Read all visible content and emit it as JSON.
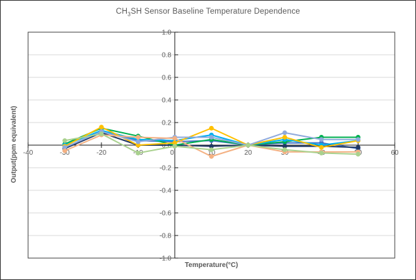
{
  "chart": {
    "title_prefix": "CH",
    "title_subscript": "3",
    "title_suffix": "SH Sensor Baseline Temperature Dependence",
    "xlabel": "Temperature(°C)",
    "ylabel": "Output(ppm equivalent)"
  },
  "chart_data": {
    "type": "line",
    "title": "CH3SH Sensor Baseline Temperature Dependence",
    "xlabel": "Temperature(°C)",
    "ylabel": "Output(ppm equivalent)",
    "xlim": [
      -40,
      60
    ],
    "ylim": [
      -1.0,
      1.0
    ],
    "x_ticks": [
      -40,
      -30,
      -20,
      -10,
      0,
      10,
      20,
      30,
      40,
      50,
      60
    ],
    "y_ticks": [
      "1.0",
      "0.8",
      "0.6",
      "0.4",
      "0.2",
      "0.0",
      "-0.2",
      "-0.4",
      "-0.6",
      "-0.8",
      "-1.0"
    ],
    "grid": "horizontal",
    "legend": "none",
    "marker": "circle",
    "x": [
      -30,
      -20,
      -10,
      0,
      10,
      20,
      30,
      40,
      50
    ],
    "series": [
      {
        "name": "series-1",
        "color": "#4472C4",
        "values": [
          -0.02,
          0.12,
          0.04,
          0.03,
          0.04,
          0.0,
          0.02,
          0.02,
          -0.03
        ]
      },
      {
        "name": "series-2",
        "color": "#203864",
        "values": [
          -0.03,
          0.11,
          0.0,
          0.0,
          -0.01,
          0.0,
          -0.01,
          -0.01,
          -0.02
        ]
      },
      {
        "name": "series-3",
        "color": "#00B050",
        "values": [
          0.01,
          0.15,
          0.08,
          0.0,
          0.05,
          0.0,
          0.03,
          0.07,
          0.07
        ]
      },
      {
        "name": "series-4",
        "color": "#00B0F0",
        "values": [
          0.0,
          0.13,
          0.05,
          0.04,
          0.09,
          0.0,
          0.05,
          0.0,
          0.04
        ]
      },
      {
        "name": "series-5",
        "color": "#FFC000",
        "values": [
          -0.01,
          0.16,
          0.0,
          0.02,
          0.15,
          0.0,
          0.07,
          -0.02,
          0.04
        ]
      },
      {
        "name": "series-6",
        "color": "#8FAADC",
        "values": [
          -0.02,
          0.12,
          0.03,
          0.07,
          0.07,
          0.0,
          0.11,
          0.05,
          0.05
        ]
      },
      {
        "name": "series-7",
        "color": "#F4B183",
        "values": [
          -0.05,
          0.09,
          0.07,
          0.06,
          -0.1,
          0.0,
          -0.06,
          -0.06,
          -0.06
        ]
      },
      {
        "name": "series-8",
        "color": "#A9D18E",
        "values": [
          0.04,
          0.1,
          -0.07,
          -0.01,
          -0.04,
          0.0,
          -0.04,
          -0.07,
          -0.08
        ]
      }
    ],
    "colors": {
      "gridline": "#d9d9d9",
      "plot_border": "#404040",
      "axis_line": "#1a1a1a",
      "tick_label": "#595959",
      "title": "#595959"
    }
  }
}
